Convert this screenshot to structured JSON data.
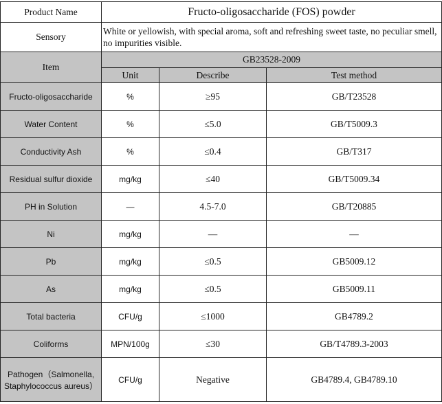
{
  "product_name": {
    "label": "Product Name",
    "value": "Fructo-oligosaccharide (FOS) powder"
  },
  "sensory": {
    "label": "Sensory",
    "value": "White or yellowish, with special aroma, soft and refreshing sweet taste, no peculiar smell, no impurities visible."
  },
  "header": {
    "item": "Item",
    "standard": "GB23528-2009",
    "unit": "Unit",
    "describe": "Describe",
    "test_method": "Test method"
  },
  "rows": [
    {
      "item": "Fructo-oligosaccharide",
      "unit": "%",
      "describe": "≥95",
      "method": "GB/T23528"
    },
    {
      "item": "Water Content",
      "unit": "%",
      "describe": "≤5.0",
      "method": "GB/T5009.3"
    },
    {
      "item": "Conductivity Ash",
      "unit": "%",
      "describe": "≤0.4",
      "method": "GB/T317"
    },
    {
      "item": "Residual sulfur dioxide",
      "unit": "mg/kg",
      "describe": "≤40",
      "method": "GB/T5009.34"
    },
    {
      "item": "PH in Solution",
      "unit": "—",
      "describe": "4.5-7.0",
      "method": "GB/T20885"
    },
    {
      "item": "Ni",
      "unit": "mg/kg",
      "describe": "—",
      "method": "—"
    },
    {
      "item": "Pb",
      "unit": "mg/kg",
      "describe": "≤0.5",
      "method": "GB5009.12"
    },
    {
      "item": "As",
      "unit": "mg/kg",
      "describe": "≤0.5",
      "method": "GB5009.11"
    },
    {
      "item": "Total bacteria",
      "unit": "CFU/g",
      "describe": "≤1000",
      "method": "GB4789.2"
    },
    {
      "item": "Coliforms",
      "unit": "MPN/100g",
      "describe": "≤30",
      "method": "GB/T4789.3-2003"
    },
    {
      "item": "Pathogen（Salmonella, Staphylococcus aureus）",
      "unit": "CFU/g",
      "describe": "Negative",
      "method": "GB4789.4, GB4789.10"
    }
  ]
}
